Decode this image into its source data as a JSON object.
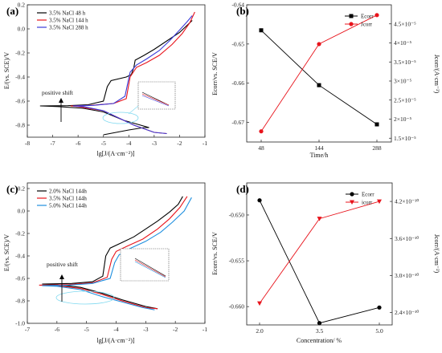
{
  "panels": {
    "a": {
      "label": "(a)",
      "xlabel": "lg[J/(A·cm⁻²)]",
      "ylabel": "E/(vs. SCE)/V",
      "annotation": "positive shift"
    },
    "b": {
      "label": "(b)",
      "xlabel": "Time/h",
      "ylabel_left": "Ecorr/vs. SCE/V",
      "ylabel_right": "Jcorr/(A·cm⁻²)"
    },
    "c": {
      "label": "(c)",
      "xlabel": "lg[J/(A·cm⁻²)]",
      "ylabel": "E/(vs. SCE)/V",
      "annotation": "positive shift"
    },
    "d": {
      "label": "(d)",
      "xlabel": "Concentration/ %",
      "ylabel_left": "Ecorr/vs. SCE/V",
      "ylabel_right": "Jcorr/(A·cm⁻²)"
    }
  },
  "colors": {
    "black": "#000000",
    "red": "#e8141c",
    "blue": "#3a3ad8",
    "cyan": "#7fd9f0",
    "magenta": "#c030c0"
  },
  "chart_data": [
    {
      "id": "a",
      "type": "line",
      "xlim": [
        -8,
        -1
      ],
      "ylim": [
        -0.9,
        0.2
      ],
      "xticks": [
        -8,
        -7,
        -6,
        -5,
        -4,
        -3,
        -2,
        -1
      ],
      "yticks": [
        -0.8,
        -0.6,
        -0.4,
        -0.2,
        0.0,
        0.2
      ],
      "ytick_labels": [
        "-0.8",
        "-0.6",
        "-0.4",
        "-0.2",
        "0.0",
        "0.2"
      ],
      "series": [
        {
          "name": "3.5% NaCl 48 h",
          "color": "#000000",
          "points": [
            [
              -5.0,
              -0.88
            ],
            [
              -4.0,
              -0.84
            ],
            [
              -3.4,
              -0.82
            ],
            [
              -3.2,
              -0.82
            ],
            [
              -3.2,
              -0.82
            ],
            [
              -4.2,
              -0.76
            ],
            [
              -5.0,
              -0.69
            ],
            [
              -5.8,
              -0.66
            ],
            [
              -6.8,
              -0.645
            ],
            [
              -7.5,
              -0.64
            ],
            [
              -6.4,
              -0.638
            ],
            [
              -5.6,
              -0.63
            ],
            [
              -5.0,
              -0.6
            ],
            [
              -4.85,
              -0.48
            ],
            [
              -4.7,
              -0.43
            ],
            [
              -4.1,
              -0.4
            ],
            [
              -3.9,
              -0.38
            ],
            [
              -3.8,
              -0.32
            ],
            [
              -3.75,
              -0.26
            ],
            [
              -3.4,
              -0.22
            ],
            [
              -3.0,
              -0.17
            ],
            [
              -2.5,
              -0.1
            ],
            [
              -2.0,
              -0.03
            ],
            [
              -1.7,
              0.03
            ],
            [
              -1.5,
              0.07
            ]
          ]
        },
        {
          "name": "3.5% NaCl 144 h",
          "color": "#e8141c",
          "points": [
            [
              -2.5,
              -0.87
            ],
            [
              -3.0,
              -0.86
            ],
            [
              -3.8,
              -0.8
            ],
            [
              -4.4,
              -0.74
            ],
            [
              -5.0,
              -0.68
            ],
            [
              -6.0,
              -0.645
            ],
            [
              -6.3,
              -0.64
            ],
            [
              -5.5,
              -0.635
            ],
            [
              -4.6,
              -0.62
            ],
            [
              -4.1,
              -0.58
            ],
            [
              -3.95,
              -0.4
            ],
            [
              -3.7,
              -0.32
            ],
            [
              -3.3,
              -0.28
            ],
            [
              -2.8,
              -0.22
            ],
            [
              -2.3,
              -0.13
            ],
            [
              -1.9,
              -0.04
            ],
            [
              -1.6,
              0.05
            ],
            [
              -1.4,
              0.14
            ]
          ]
        },
        {
          "name": "3.5% NaCl 288 h",
          "color": "#3a3ad8",
          "points": [
            [
              -2.5,
              -0.87
            ],
            [
              -3.0,
              -0.86
            ],
            [
              -3.8,
              -0.8
            ],
            [
              -4.4,
              -0.74
            ],
            [
              -5.0,
              -0.68
            ],
            [
              -5.8,
              -0.645
            ],
            [
              -6.2,
              -0.64
            ],
            [
              -5.4,
              -0.635
            ],
            [
              -4.6,
              -0.62
            ],
            [
              -4.15,
              -0.56
            ],
            [
              -4.05,
              -0.46
            ],
            [
              -3.95,
              -0.36
            ],
            [
              -3.7,
              -0.3
            ],
            [
              -3.3,
              -0.25
            ],
            [
              -2.8,
              -0.18
            ],
            [
              -2.4,
              -0.1
            ],
            [
              -2.0,
              -0.01
            ],
            [
              -1.7,
              0.06
            ],
            [
              -1.5,
              0.11
            ]
          ]
        }
      ]
    },
    {
      "id": "b",
      "type": "line",
      "categories": [
        "48",
        "144",
        "288"
      ],
      "left_ylim": [
        -0.675,
        -0.64
      ],
      "left_yticks": [
        -0.67,
        -0.66,
        -0.65,
        -0.64
      ],
      "left_ytick_labels": [
        "-0.67",
        "-0.66",
        "-0.65",
        "-0.64"
      ],
      "right_ylim": [
        1.4e-05,
        5e-05
      ],
      "right_yticks": [
        1.5e-05,
        2e-05,
        2.5e-05,
        3e-05,
        3.5e-05,
        4e-05,
        4.5e-05
      ],
      "right_ytick_labels": [
        "1.5×10⁻⁵",
        "2×10⁻⁵",
        "2.5×10⁻⁵",
        "3×10⁻⁵",
        "3.5×10⁻⁵",
        "4×10⁻⁵",
        "4.5×10⁻⁵"
      ],
      "series": [
        {
          "name": "Ecorr",
          "axis": "left",
          "color": "#000000",
          "marker": "square",
          "values": [
            -0.6465,
            -0.6605,
            -0.6705
          ]
        },
        {
          "name": "Jcorr",
          "axis": "right",
          "color": "#e8141c",
          "marker": "circle",
          "values": [
            1.68e-05,
            3.97e-05,
            4.73e-05
          ]
        }
      ]
    },
    {
      "id": "c",
      "type": "line",
      "xlim": [
        -7,
        -1
      ],
      "ylim": [
        -1.0,
        0.25
      ],
      "xticks": [
        -7,
        -6,
        -5,
        -4,
        -3,
        -2,
        -1
      ],
      "yticks": [
        -1.0,
        -0.8,
        -0.6,
        -0.4,
        -0.2,
        0.0,
        0.2
      ],
      "ytick_labels": [
        "-1.0",
        "-0.8",
        "-0.6",
        "-0.4",
        "-0.2",
        "0.0",
        "0.2"
      ],
      "series": [
        {
          "name": "2.0% NaCl 144h",
          "color": "#000000",
          "points": [
            [
              -2.6,
              -0.87
            ],
            [
              -3.0,
              -0.85
            ],
            [
              -3.8,
              -0.79
            ],
            [
              -4.5,
              -0.73
            ],
            [
              -5.2,
              -0.68
            ],
            [
              -6.0,
              -0.655
            ],
            [
              -6.5,
              -0.65
            ],
            [
              -5.5,
              -0.645
            ],
            [
              -4.8,
              -0.63
            ],
            [
              -4.45,
              -0.58
            ],
            [
              -4.35,
              -0.4
            ],
            [
              -4.2,
              -0.33
            ],
            [
              -3.8,
              -0.28
            ],
            [
              -3.4,
              -0.23
            ],
            [
              -3.0,
              -0.16
            ],
            [
              -2.6,
              -0.09
            ],
            [
              -2.2,
              -0.01
            ],
            [
              -1.9,
              0.06
            ],
            [
              -1.75,
              0.13
            ]
          ]
        },
        {
          "name": "3.5% NaCl 144h",
          "color": "#e8141c",
          "points": [
            [
              -2.6,
              -0.87
            ],
            [
              -3.0,
              -0.86
            ],
            [
              -3.8,
              -0.8
            ],
            [
              -4.5,
              -0.74
            ],
            [
              -5.2,
              -0.69
            ],
            [
              -6.0,
              -0.665
            ],
            [
              -6.6,
              -0.66
            ],
            [
              -5.6,
              -0.655
            ],
            [
              -4.8,
              -0.64
            ],
            [
              -4.3,
              -0.59
            ],
            [
              -4.15,
              -0.43
            ],
            [
              -4.0,
              -0.36
            ],
            [
              -3.6,
              -0.31
            ],
            [
              -3.1,
              -0.25
            ],
            [
              -2.6,
              -0.16
            ],
            [
              -2.2,
              -0.07
            ],
            [
              -1.85,
              0.03
            ],
            [
              -1.6,
              0.13
            ]
          ]
        },
        {
          "name": "5.0% NaCl 144h",
          "color": "#1e8fdf",
          "points": [
            [
              -2.7,
              -0.88
            ],
            [
              -3.1,
              -0.86
            ],
            [
              -3.8,
              -0.81
            ],
            [
              -4.5,
              -0.76
            ],
            [
              -5.2,
              -0.7
            ],
            [
              -6.0,
              -0.67
            ],
            [
              -6.5,
              -0.665
            ],
            [
              -5.6,
              -0.66
            ],
            [
              -4.8,
              -0.645
            ],
            [
              -4.2,
              -0.6
            ],
            [
              -4.05,
              -0.46
            ],
            [
              -3.9,
              -0.39
            ],
            [
              -3.5,
              -0.33
            ],
            [
              -3.0,
              -0.27
            ],
            [
              -2.5,
              -0.19
            ],
            [
              -2.1,
              -0.1
            ],
            [
              -1.7,
              0.0
            ],
            [
              -1.45,
              0.12
            ]
          ]
        }
      ]
    },
    {
      "id": "d",
      "type": "line",
      "categories": [
        "2.0",
        "3.5",
        "5.0"
      ],
      "left_ylim": [
        -0.662,
        -0.6465
      ],
      "left_yticks": [
        -0.66,
        -0.655,
        -0.65
      ],
      "left_ytick_labels": [
        "-0.660",
        "-0.655",
        "-0.650"
      ],
      "right_ylim": [
        2.2e-10,
        4.5e-10
      ],
      "right_yticks": [
        2.4e-10,
        3e-10,
        3.6e-10,
        4.2e-10
      ],
      "right_ytick_labels": [
        "2.4×10⁻¹⁰",
        "3.0×10⁻¹⁰",
        "3.6×10⁻¹⁰",
        "4.2×10⁻¹⁰"
      ],
      "series": [
        {
          "name": "Ecorr",
          "axis": "left",
          "color": "#000000",
          "marker": "circle",
          "values": [
            -0.6484,
            -0.6618,
            -0.6601
          ]
        },
        {
          "name": "icorr",
          "axis": "right",
          "color": "#e8141c",
          "marker": "triangle-down",
          "values": [
            2.55e-10,
            3.92e-10,
            4.2e-10
          ]
        }
      ]
    }
  ]
}
